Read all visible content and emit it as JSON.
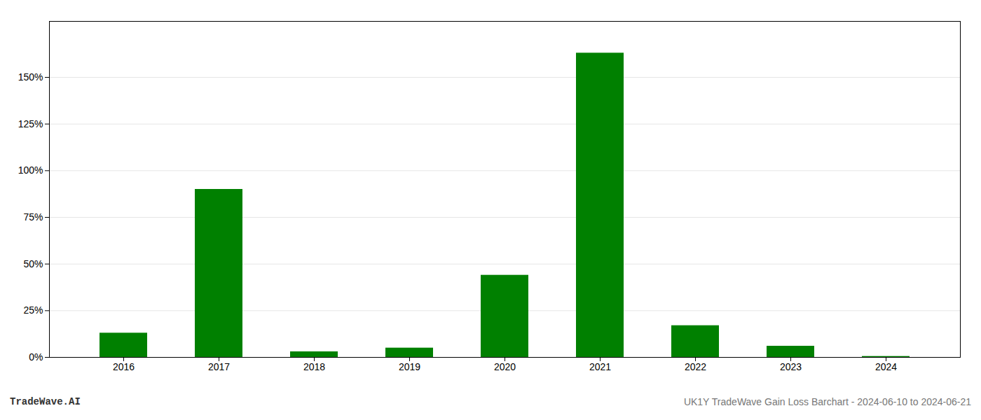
{
  "chart_data": {
    "type": "bar",
    "title": "UK1Y TradeWave Gain Loss Barchart - 2024-06-10 to 2024-06-21",
    "annotations": [
      "TradeWave.AI"
    ],
    "categories": [
      "2016",
      "2017",
      "2018",
      "2019",
      "2020",
      "2021",
      "2022",
      "2023",
      "2024"
    ],
    "values": [
      0.13,
      0.9,
      0.03,
      0.05,
      0.44,
      1.63,
      0.17,
      0.06,
      0.005
    ],
    "color": "#008000",
    "ylim": [
      0.0,
      1.8
    ],
    "yticks": [
      {
        "value": 0.0,
        "label": "0%"
      },
      {
        "value": 0.25,
        "label": "25%"
      },
      {
        "value": 0.5,
        "label": "50%"
      },
      {
        "value": 0.75,
        "label": "75%"
      },
      {
        "value": 1.0,
        "label": "100%"
      },
      {
        "value": 1.25,
        "label": "125%"
      },
      {
        "value": 1.5,
        "label": "150%"
      }
    ],
    "grid": true
  }
}
